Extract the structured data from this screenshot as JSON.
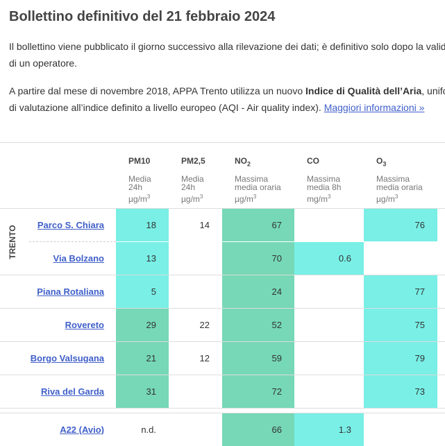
{
  "header": {
    "title": "Bollettino definitivo del 21 febbraio 2024"
  },
  "intro": {
    "line1": "Il bollettino viene pubblicato il giorno successivo alla rilevazione dei dati; è definitivo solo dopo la valid",
    "line2": "di un operatore."
  },
  "methodology": {
    "line1_before": "A partire dal mese di novembre 2018, APPA Trento utilizza un nuovo ",
    "line1_bold": "Indice di Qualità dell’Aria",
    "line1_after": ", uniform",
    "line2": "di valutazione all’indice definito a livello europeo (AQI - Air quality index). ",
    "link": "Maggiori informazioni »"
  },
  "table": {
    "columns": [
      {
        "name": "PM10",
        "description": "Media 24h",
        "unit": "µg/m",
        "unit_sup": "3"
      },
      {
        "name": "PM2,5",
        "description": "Media 24h",
        "unit": "µg/m",
        "unit_sup": "3"
      },
      {
        "name": "NO",
        "name_sub": "2",
        "description": "Massima media oraria",
        "unit": "µg/m",
        "unit_sup": "3"
      },
      {
        "name": "CO",
        "description": "Massima media 8h",
        "unit": "mg/m",
        "unit_sup": "3"
      },
      {
        "name": "O",
        "name_sub": "3",
        "description": "Massima media oraria",
        "unit": "µg/m",
        "unit_sup": "3"
      }
    ],
    "sections": [
      {
        "label": "TRENTO",
        "rows": [
          {
            "station": "Parco S. Chiara",
            "cells": [
              {
                "value": 18,
                "color": "#79efe6"
              },
              {
                "value": 14
              },
              {
                "value": 67,
                "color": "#76d8b6"
              },
              {
                "value": null
              },
              {
                "value": 76,
                "color": "#79efe6"
              }
            ]
          },
          {
            "station": "Via Bolzano",
            "cells": [
              {
                "value": 13,
                "color": "#79efe6"
              },
              {
                "value": null
              },
              {
                "value": 70,
                "color": "#76d8b6"
              },
              {
                "value": 0.6,
                "color": "#79efe6"
              },
              {
                "value": null
              }
            ]
          }
        ]
      },
      {
        "rows": [
          {
            "station": "Piana Rotaliana",
            "cells": [
              {
                "value": 5,
                "color": "#79efe6"
              },
              {
                "value": null
              },
              {
                "value": 24,
                "color": "#76d8b6"
              },
              {
                "value": null
              },
              {
                "value": 77,
                "color": "#79efe6"
              }
            ]
          },
          {
            "station": "Rovereto",
            "cells": [
              {
                "value": 29,
                "color": "#76d8b6"
              },
              {
                "value": 22
              },
              {
                "value": 52,
                "color": "#76d8b6"
              },
              {
                "value": null
              },
              {
                "value": 75,
                "color": "#79efe6"
              }
            ]
          },
          {
            "station": "Borgo Valsugana",
            "cells": [
              {
                "value": 21,
                "color": "#76d8b6"
              },
              {
                "value": 12
              },
              {
                "value": 59,
                "color": "#76d8b6"
              },
              {
                "value": null
              },
              {
                "value": 79,
                "color": "#79efe6"
              }
            ]
          },
          {
            "station": "Riva del Garda",
            "cells": [
              {
                "value": 31,
                "color": "#76d8b6"
              },
              {
                "value": null
              },
              {
                "value": 72,
                "color": "#76d8b6"
              },
              {
                "value": null
              },
              {
                "value": 73,
                "color": "#79efe6"
              }
            ]
          }
        ]
      },
      {
        "rows": [
          {
            "station": "A22 (Avio)",
            "cells": [
              {
                "value": "n.d."
              },
              {
                "value": null
              },
              {
                "value": 66,
                "color": "#76d8b6"
              },
              {
                "value": 1.3,
                "color": "#79efe6"
              },
              {
                "value": null
              }
            ]
          }
        ]
      }
    ]
  }
}
